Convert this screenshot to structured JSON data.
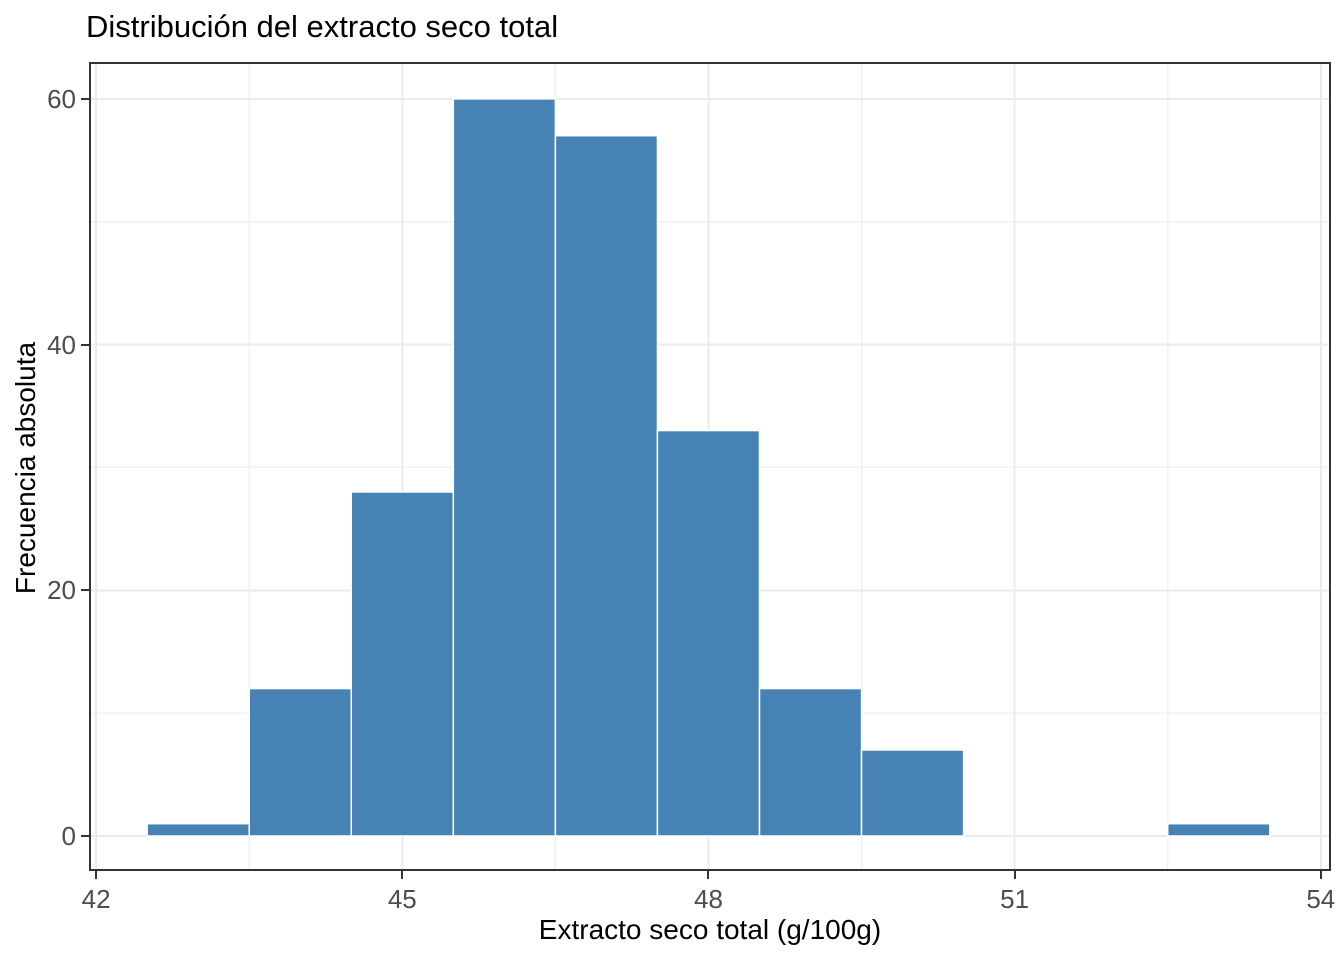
{
  "chart_data": {
    "type": "histogram",
    "title": "Distribución del extracto seco total",
    "xlabel": "Extracto seco total (g/100g)",
    "ylabel": "Frecuencia absoluta",
    "bin_width": 1,
    "bins": [
      {
        "center": 43,
        "count": 1
      },
      {
        "center": 44,
        "count": 12
      },
      {
        "center": 45,
        "count": 28
      },
      {
        "center": 46,
        "count": 60
      },
      {
        "center": 47,
        "count": 57
      },
      {
        "center": 48,
        "count": 33
      },
      {
        "center": 49,
        "count": 12
      },
      {
        "center": 50,
        "count": 7
      },
      {
        "center": 53,
        "count": 1
      }
    ],
    "x_ticks": [
      42,
      45,
      48,
      51,
      54
    ],
    "y_ticks": [
      0,
      20,
      40,
      60
    ],
    "x_minor_ticks": [
      43.5,
      46.5,
      49.5,
      52.5
    ],
    "y_minor_ticks": [
      10,
      30,
      50
    ],
    "xlim": [
      41.93,
      54.1
    ],
    "ylim": [
      -2.85,
      63.0
    ],
    "grid": "major-and-minor",
    "legend": "none",
    "colors": {
      "bar_fill": "#4682B4",
      "bar_stroke": "#FFFFFF",
      "panel_border": "#333333",
      "tick_mark": "#333333",
      "tick_label": "#4D4D4D",
      "grid_major": "#EBEBEB",
      "grid_minor": "#F1F1F1",
      "text": "#000000",
      "background": "#FFFFFF"
    }
  }
}
